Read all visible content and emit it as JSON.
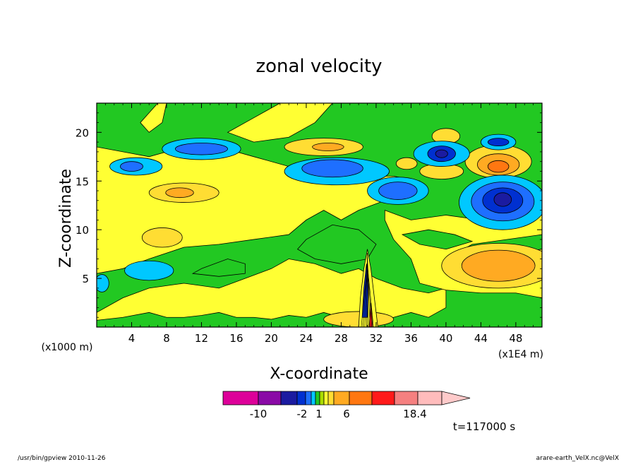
{
  "chart_data": {
    "type": "heatmap",
    "title": "zonal velocity",
    "xlabel": "X-coordinate",
    "ylabel": "Z-coordinate",
    "x_unit": "(x1E4 m)",
    "y_unit": "(x1000 m)",
    "xlim": [
      0,
      51
    ],
    "ylim": [
      0,
      23
    ],
    "x_ticks": [
      4,
      8,
      12,
      16,
      20,
      24,
      28,
      32,
      36,
      40,
      44,
      48
    ],
    "y_ticks": [
      5,
      10,
      15,
      20
    ],
    "colorbar": {
      "bins": [
        {
          "color": "#dd0099"
        },
        {
          "color": "#8a0aa6"
        },
        {
          "color": "#1b1ba0"
        },
        {
          "color": "#0030d0"
        },
        {
          "color": "#1e6fff"
        },
        {
          "color": "#00c8ff"
        },
        {
          "color": "#22c822"
        },
        {
          "color": "#aadd00"
        },
        {
          "color": "#ffff33"
        },
        {
          "color": "#ffdd33"
        },
        {
          "color": "#ffaa22"
        },
        {
          "color": "#ff7711"
        },
        {
          "color": "#ff1a1a"
        },
        {
          "color": "#f58080"
        },
        {
          "color": "#ffbcbc"
        },
        {
          "color": "#ffcaca"
        }
      ],
      "labels": [
        "-10",
        "-2",
        "1",
        "6",
        "18.4"
      ]
    },
    "regions": [
      {
        "level": "c_green",
        "x": [
          27,
          38
        ],
        "z": [
          0,
          4
        ],
        "r": [
          10,
          3
        ]
      },
      {
        "level": "c_orange",
        "x": [
          46,
          6.3
        ],
        "r": [
          4.5,
          1.8
        ]
      },
      {
        "level": "c_yellow",
        "x": [
          46,
          6.3
        ],
        "r": [
          7,
          2.8
        ]
      }
    ],
    "time_label": "t=117000 s"
  },
  "footer": {
    "left": "/usr/bin/gpview   2010-11-26",
    "right": "arare-earth_VelX.nc@VelX"
  }
}
